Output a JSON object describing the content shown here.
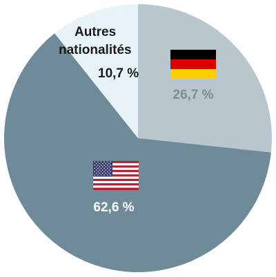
{
  "chart_data": {
    "type": "pie",
    "slices": [
      {
        "label_lines": [],
        "value_text": "26,7 %",
        "value": 26.7,
        "color": "#b8c6ce",
        "label_color": "#7d8b93",
        "flag": "germany-flag-icon"
      },
      {
        "label_lines": [],
        "value_text": "62,6 %",
        "value": 62.6,
        "color": "#6f8a99",
        "label_color": "#ffffff",
        "flag": "usa-flag-icon"
      },
      {
        "label_lines": [
          "Autres",
          "nationalités"
        ],
        "value_text": "10,7 %",
        "value": 10.7,
        "color": "#e8f3f8",
        "label_color": "#1a1a1a",
        "flag": ""
      }
    ],
    "start_angle_deg": 0,
    "direction": "clockwise",
    "legend": "none"
  }
}
